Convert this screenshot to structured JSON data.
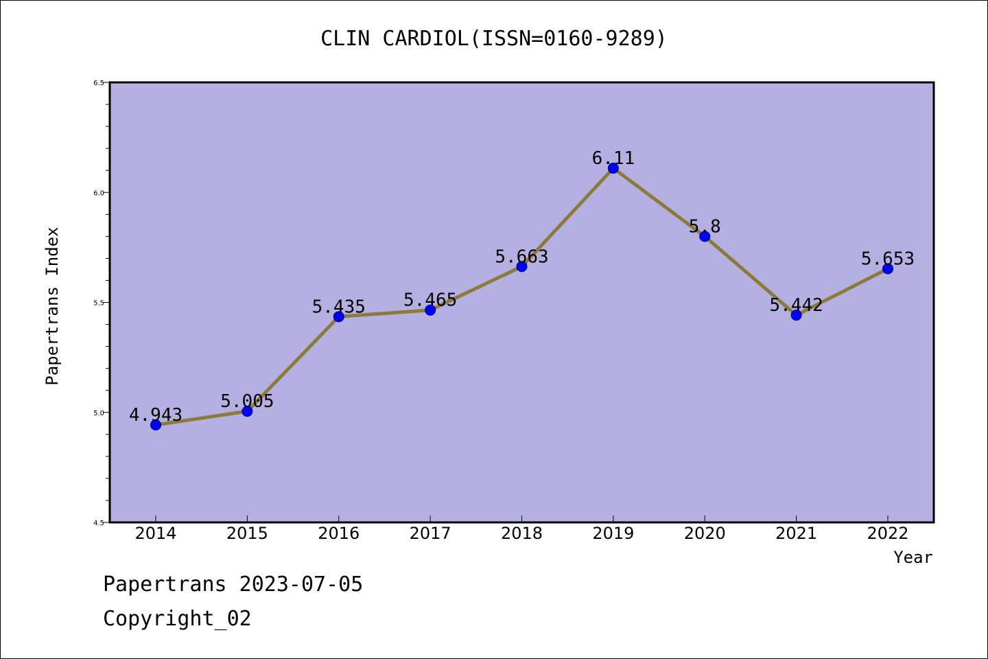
{
  "chart_data": {
    "type": "line",
    "title": "CLIN CARDIOL(ISSN=0160-9289)",
    "xlabel": "Year",
    "ylabel": "Papertrans Index",
    "categories": [
      "2014",
      "2015",
      "2016",
      "2017",
      "2018",
      "2019",
      "2020",
      "2021",
      "2022"
    ],
    "values": [
      4.943,
      5.005,
      5.435,
      5.465,
      5.663,
      6.11,
      5.8,
      5.442,
      5.653
    ],
    "data_labels": [
      "4.943",
      "5.005",
      "5.435",
      "5.465",
      "5.663",
      "6.11",
      "5.8",
      "5.442",
      "5.653"
    ],
    "ylim": [
      4.5,
      6.5
    ],
    "yticks": [
      "4.5",
      "5.0",
      "5.5",
      "6.0",
      "6.5"
    ],
    "grid": false,
    "colors": {
      "plot_background": "#b5b0e2",
      "line": "#8c7a3a",
      "marker": "#0000ff"
    }
  },
  "footer": {
    "date_line": "Papertrans 2023-07-05",
    "copyright": "Copyright_02"
  }
}
